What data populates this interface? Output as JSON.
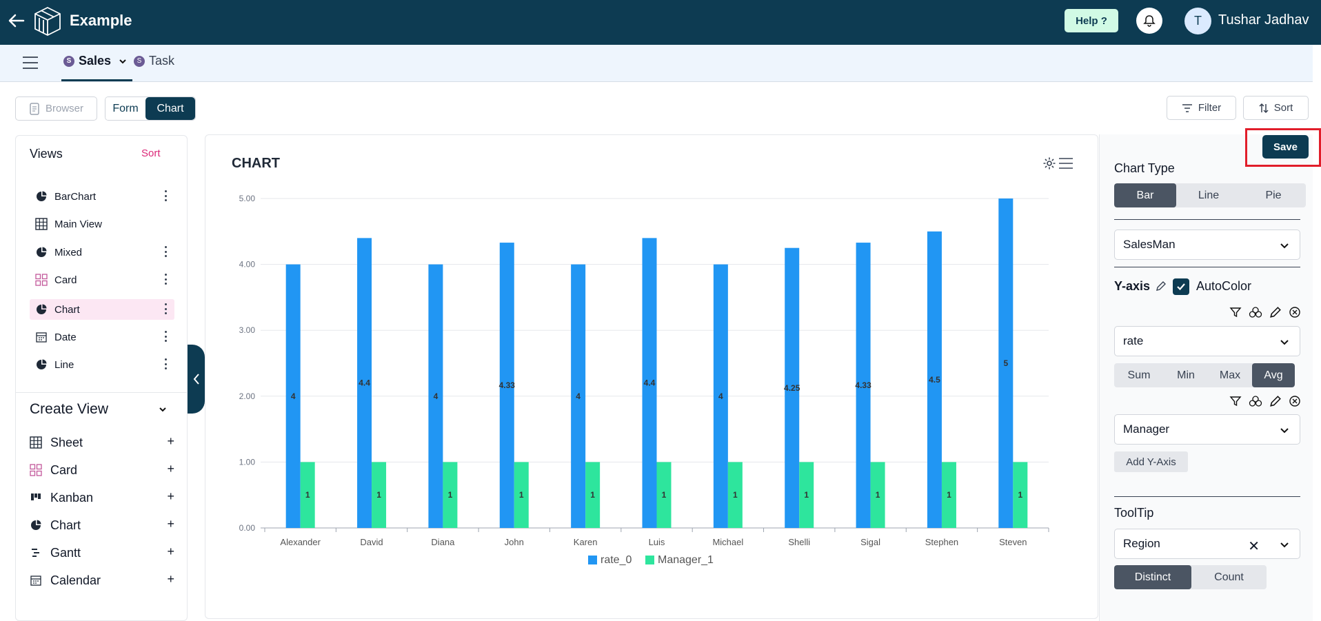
{
  "app": {
    "title": "Example",
    "help_label": "Help ?",
    "user_initial": "T",
    "user_name": "Tushar Jadhav"
  },
  "tabs": [
    {
      "badge": "S",
      "label": "Sales"
    },
    {
      "badge": "S",
      "label": "Task"
    }
  ],
  "toolbar": {
    "browser_label": "Browser",
    "form_label": "Form",
    "chart_label": "Chart",
    "filter_label": "Filter",
    "sort_label": "Sort"
  },
  "views": {
    "title": "Views",
    "sort_label": "Sort",
    "items": [
      {
        "label": "BarChart",
        "icon": "pie-icon"
      },
      {
        "label": "Main View",
        "icon": "grid-icon"
      },
      {
        "label": "Mixed",
        "icon": "pie-icon"
      },
      {
        "label": "Card",
        "icon": "card-icon"
      },
      {
        "label": "Chart",
        "icon": "pie-icon"
      },
      {
        "label": "Date",
        "icon": "calendar-icon"
      },
      {
        "label": "Line",
        "icon": "pie-icon"
      }
    ]
  },
  "create_view": {
    "title": "Create View",
    "items": [
      {
        "label": "Sheet",
        "icon": "grid-icon"
      },
      {
        "label": "Card",
        "icon": "card-icon"
      },
      {
        "label": "Kanban",
        "icon": "kanban-icon"
      },
      {
        "label": "Chart",
        "icon": "pie-icon"
      },
      {
        "label": "Gantt",
        "icon": "gantt-icon"
      },
      {
        "label": "Calendar",
        "icon": "calendar-icon"
      }
    ]
  },
  "chart_panel": {
    "title": "CHART"
  },
  "settings": {
    "save_label": "Save",
    "chart_type_title": "Chart Type",
    "chart_types": [
      "Bar",
      "Line",
      "Pie"
    ],
    "x_axis_field": "SalesMan",
    "y_axis_title": "Y-axis",
    "autocolor_label": "AutoColor",
    "y_field_1": "rate",
    "aggregations": [
      "Sum",
      "Min",
      "Max",
      "Avg"
    ],
    "y_field_2": "Manager",
    "add_y_label": "Add Y-Axis",
    "tooltip_title": "ToolTip",
    "tooltip_field": "Region",
    "tooltip_modes": [
      "Distinct",
      "Count"
    ]
  },
  "chart_data": {
    "type": "bar",
    "categories": [
      "Alexander",
      "David",
      "Diana",
      "John",
      "Karen",
      "Luis",
      "Michael",
      "Shelli",
      "Sigal",
      "Stephen",
      "Steven"
    ],
    "series": [
      {
        "name": "rate_0",
        "color": "#2196f3",
        "values": [
          4,
          4.4,
          4,
          4.33,
          4,
          4.4,
          4,
          4.25,
          4.33,
          4.5,
          5
        ]
      },
      {
        "name": "Manager_1",
        "color": "#2ee59d",
        "values": [
          1,
          1,
          1,
          1,
          1,
          1,
          1,
          1,
          1,
          1,
          1
        ]
      }
    ],
    "ylim": [
      0,
      5
    ],
    "yticks": [
      "0.00",
      "1.00",
      "2.00",
      "3.00",
      "4.00",
      "5.00"
    ],
    "grid": true,
    "legend": "bottom-center"
  }
}
